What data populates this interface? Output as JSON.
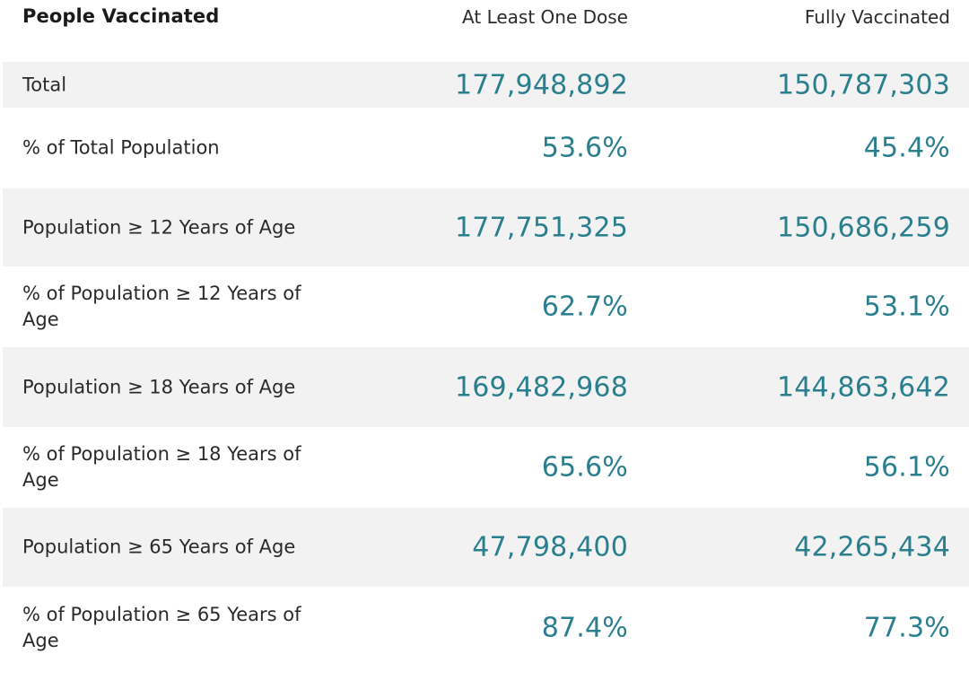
{
  "header": {
    "label": "People Vaccinated",
    "dose": "At Least One Dose",
    "full": "Fully Vaccinated"
  },
  "rows": [
    {
      "label": "Total",
      "dose": "177,948,892",
      "full": "150,787,303"
    },
    {
      "label": "% of Total Population",
      "dose": "53.6%",
      "full": "45.4%"
    },
    {
      "label": "Population ≥ 12 Years of Age",
      "dose": "177,751,325",
      "full": "150,686,259"
    },
    {
      "label": "% of Population ≥ 12 Years of Age",
      "dose": "62.7%",
      "full": "53.1%"
    },
    {
      "label": "Population ≥ 18 Years of Age",
      "dose": "169,482,968",
      "full": "144,863,642"
    },
    {
      "label": "% of Population ≥ 18 Years of Age",
      "dose": "65.6%",
      "full": "56.1%"
    },
    {
      "label": "Population ≥ 65 Years of Age",
      "dose": "47,798,400",
      "full": "42,265,434"
    },
    {
      "label": "% of Population ≥ 65 Years of Age",
      "dose": "87.4%",
      "full": "77.3%"
    }
  ],
  "colors": {
    "value_text": "#2a7f8f",
    "shaded_row": "#f2f2f2"
  }
}
